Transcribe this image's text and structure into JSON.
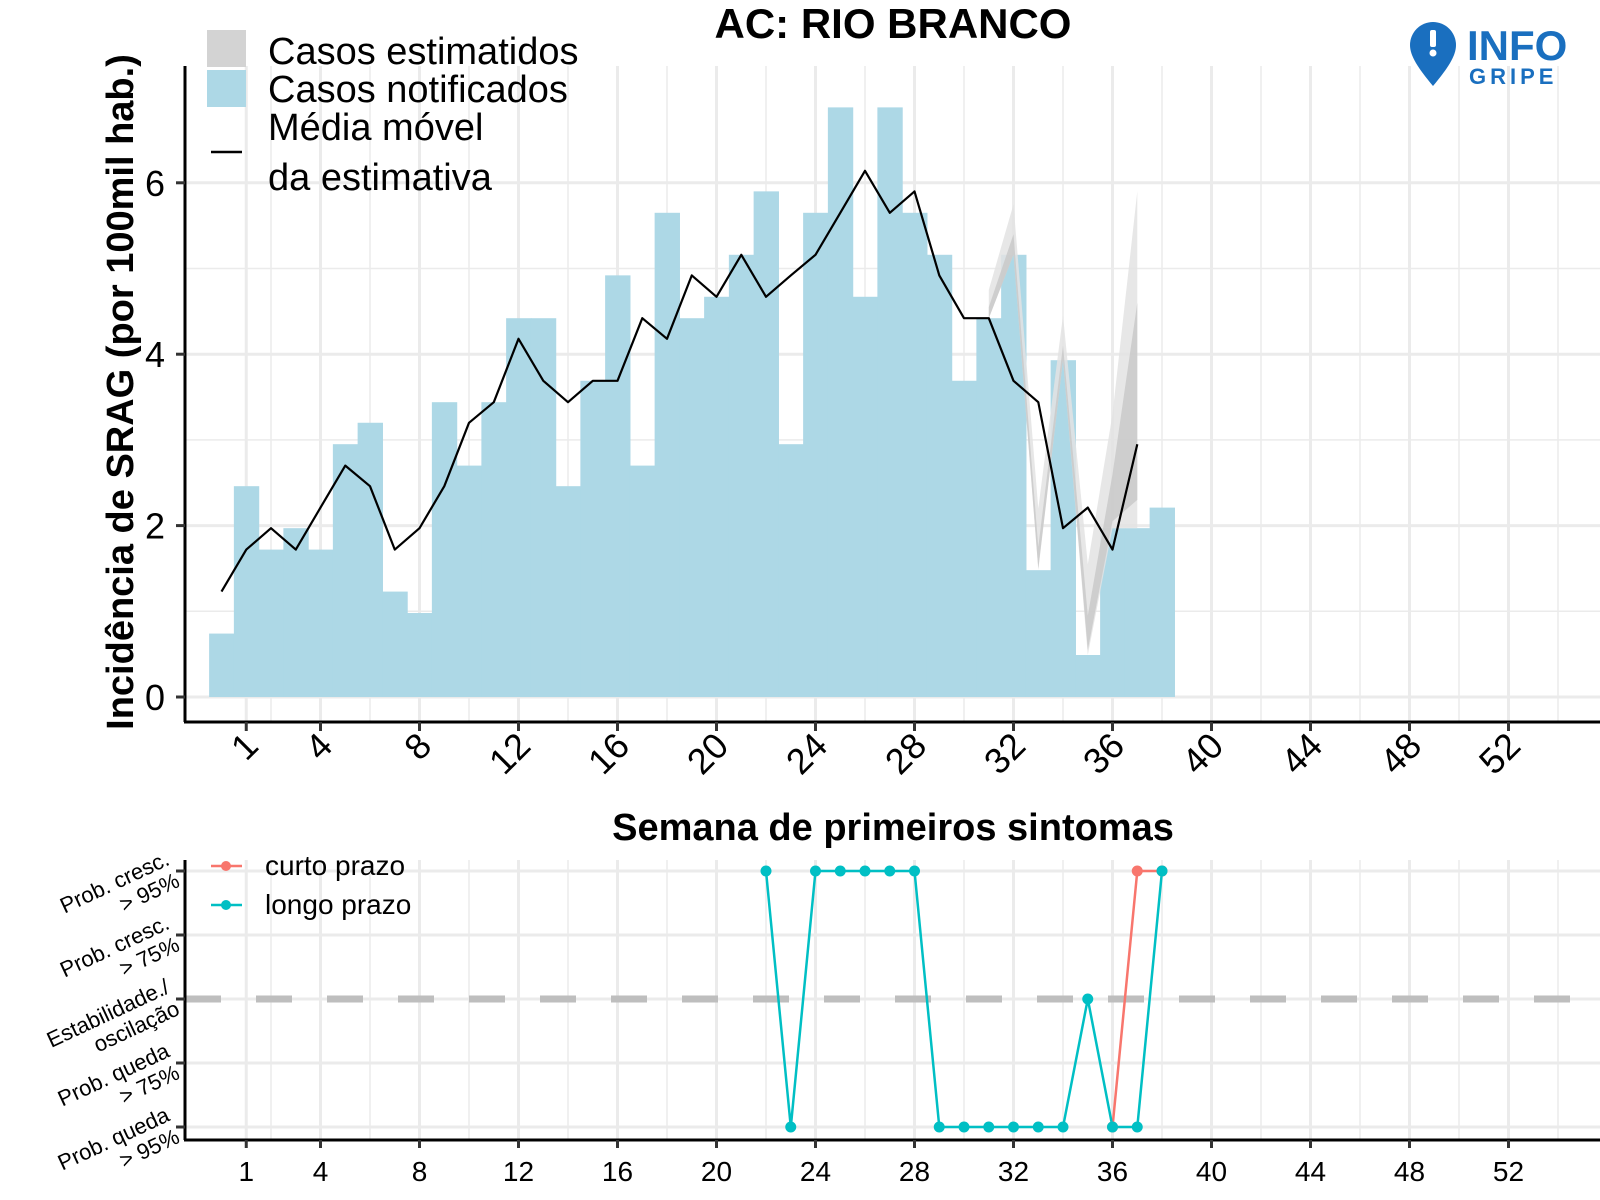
{
  "logo": {
    "line1": "INFO",
    "line2": "GRIPE",
    "color": "#1a6fbf"
  },
  "colors": {
    "notified": "#add8e6",
    "estimated": "#d3d3d3",
    "band_outer": "#e3e3e3",
    "band_inner": "#c9c9c9",
    "line": "#000000",
    "curto": "#f8766d",
    "longo": "#00bfc4",
    "grid": "#ebebeb",
    "dashed": "#bebebe"
  },
  "chart_data": [
    {
      "type": "bar",
      "title": "AC: RIO BRANCO",
      "xlabel": "Semana de primeiros sintomas",
      "ylabel": "Incidência de SRAG (por 100mil hab.)",
      "xlim": [
        0,
        54
      ],
      "ylim": [
        0,
        7
      ],
      "x_ticks": [
        1,
        4,
        8,
        12,
        16,
        20,
        24,
        28,
        32,
        36,
        40,
        44,
        48,
        52
      ],
      "y_ticks": [
        0,
        2,
        4,
        6
      ],
      "legend": {
        "position": "top-left",
        "estimated": "Casos estimatidos",
        "notified": "Casos notificados",
        "moving_avg_1": "Média móvel",
        "moving_avg_2": "da estimativa"
      },
      "weeks": [
        0,
        1,
        2,
        3,
        4,
        5,
        6,
        7,
        8,
        9,
        10,
        11,
        12,
        13,
        14,
        15,
        16,
        17,
        18,
        19,
        20,
        21,
        22,
        23,
        24,
        25,
        26,
        27,
        28,
        29,
        30,
        31,
        32,
        33,
        34,
        35,
        36,
        37,
        38
      ],
      "notified": [
        0.74,
        2.46,
        1.72,
        1.97,
        1.72,
        2.95,
        3.2,
        1.23,
        0.98,
        3.44,
        2.7,
        3.44,
        4.42,
        4.42,
        2.46,
        3.69,
        4.92,
        2.7,
        5.65,
        4.42,
        4.67,
        5.16,
        5.9,
        2.95,
        5.65,
        6.88,
        4.67,
        6.88,
        5.65,
        5.16,
        3.69,
        4.42,
        5.16,
        1.48,
        3.93,
        0.49,
        1.97,
        1.97,
        2.21
      ],
      "moving_average": {
        "x": [
          0,
          1,
          2,
          3,
          4,
          5,
          6,
          7,
          8,
          9,
          10,
          11,
          12,
          13,
          14,
          15,
          16,
          17,
          18,
          19,
          20,
          21,
          22,
          23,
          24,
          25,
          26,
          27,
          28,
          29,
          30,
          31,
          32,
          33,
          34,
          35,
          36,
          37
        ],
        "y": [
          1.23,
          1.72,
          1.97,
          1.72,
          2.21,
          2.7,
          2.46,
          1.72,
          1.97,
          2.46,
          3.2,
          3.44,
          4.18,
          3.69,
          3.44,
          3.69,
          3.69,
          4.42,
          4.18,
          4.92,
          4.67,
          5.16,
          4.67,
          4.92,
          5.16,
          5.65,
          6.14,
          5.65,
          5.9,
          4.92,
          4.42,
          4.42,
          3.69,
          3.44,
          1.97,
          2.21,
          1.72,
          2.95
        ]
      },
      "estimate_band_outer": {
        "x": [
          31,
          32,
          33,
          34,
          35,
          36,
          37
        ],
        "low": [
          4.42,
          5.16,
          1.48,
          3.93,
          0.49,
          1.97,
          1.97
        ],
        "high": [
          4.75,
          5.75,
          2.2,
          4.45,
          1.55,
          3.3,
          5.9
        ]
      },
      "estimate_band_inner": {
        "x": [
          31,
          32,
          33,
          34,
          35,
          36,
          37
        ],
        "low": [
          4.42,
          5.16,
          1.5,
          3.93,
          0.55,
          2.05,
          2.3
        ],
        "high": [
          4.55,
          5.4,
          1.75,
          4.1,
          0.95,
          2.6,
          4.6
        ]
      }
    },
    {
      "type": "line",
      "xlim": [
        0,
        54
      ],
      "x_ticks": [
        1,
        4,
        8,
        12,
        16,
        20,
        24,
        28,
        32,
        36,
        40,
        44,
        48,
        52
      ],
      "levels": [
        [
          "Prob. queda",
          "> 95%"
        ],
        [
          "Prob. queda",
          "> 75%"
        ],
        [
          "Estabilidade./",
          "oscilação"
        ],
        [
          "Prob. cresc.",
          "> 75%"
        ],
        [
          "Prob. cresc.",
          "> 95%"
        ]
      ],
      "legend": {
        "position": "top-left"
      },
      "series": [
        {
          "name": "curto prazo",
          "x": [
            36,
            37,
            38
          ],
          "y": [
            -2,
            2,
            2
          ]
        },
        {
          "name": "longo prazo",
          "x": [
            22,
            23,
            24,
            25,
            26,
            27,
            28,
            29,
            30,
            31,
            32,
            33,
            34,
            35,
            36,
            37,
            38
          ],
          "y": [
            2,
            -2,
            2,
            2,
            2,
            2,
            2,
            -2,
            -2,
            -2,
            -2,
            -2,
            -2,
            0,
            -2,
            -2,
            2
          ]
        }
      ]
    }
  ]
}
